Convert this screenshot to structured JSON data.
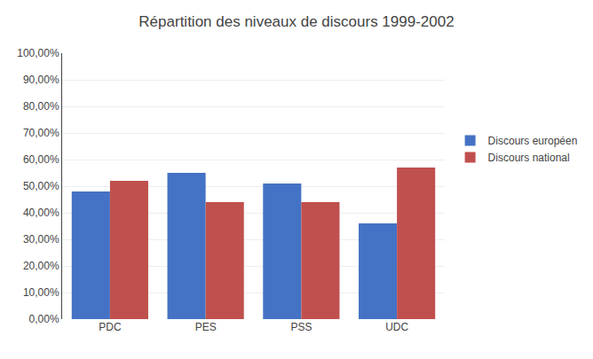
{
  "chart_data": {
    "type": "bar",
    "title": "Répartition des niveaux de discours 1999-2002",
    "categories": [
      "PDC",
      "PES",
      "PSS",
      "UDC"
    ],
    "series": [
      {
        "name": "Discours européen",
        "color": "#4472C4",
        "values": [
          0.48,
          0.55,
          0.51,
          0.36
        ]
      },
      {
        "name": "Discours national",
        "color": "#C0504D",
        "values": [
          0.52,
          0.44,
          0.44,
          0.57
        ]
      }
    ],
    "ylim": [
      0,
      1.0
    ],
    "yticks": [
      {
        "value": 0.0,
        "label": "0,00%"
      },
      {
        "value": 0.1,
        "label": "10,00%"
      },
      {
        "value": 0.2,
        "label": "20,00%"
      },
      {
        "value": 0.3,
        "label": "30,00%"
      },
      {
        "value": 0.4,
        "label": "40,00%"
      },
      {
        "value": 0.5,
        "label": "50,00%"
      },
      {
        "value": 0.6,
        "label": "60,00%"
      },
      {
        "value": 0.7,
        "label": "70,00%"
      },
      {
        "value": 0.8,
        "label": "80,00%"
      },
      {
        "value": 0.9,
        "label": "90,00%"
      },
      {
        "value": 1.0,
        "label": "100,00%"
      }
    ],
    "grid": true,
    "legend": "right"
  }
}
